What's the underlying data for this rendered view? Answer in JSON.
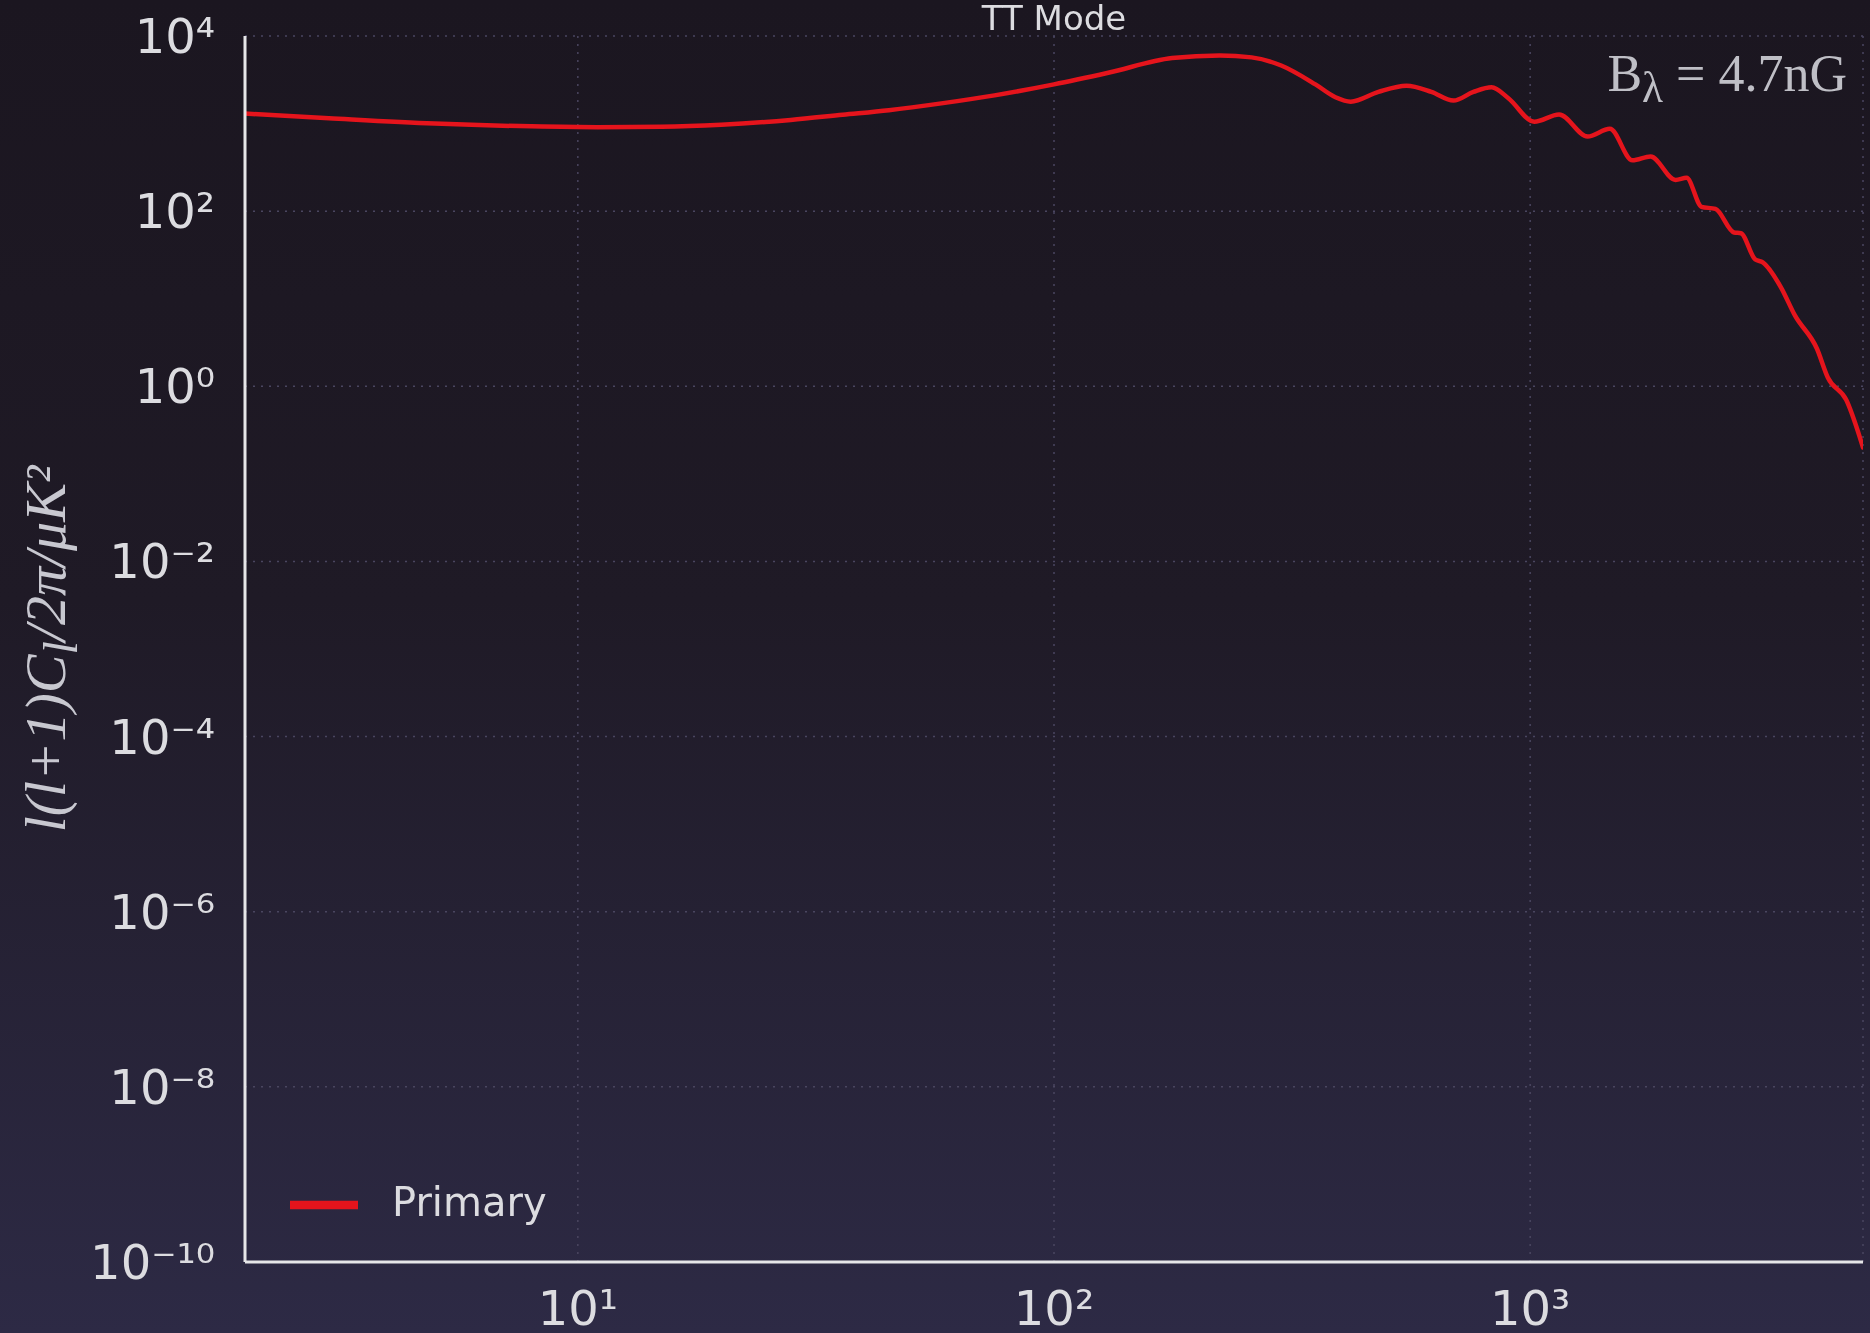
{
  "chart_data": {
    "type": "line",
    "title": "TT Mode",
    "ylabel": "l(l+1)C$_{l}$/2π/μK²",
    "annotations": [
      "B$_{λ}$ = 4.7nG"
    ],
    "x": [
      2,
      3,
      5,
      8,
      11,
      15,
      20,
      28,
      36,
      45,
      58,
      75,
      100,
      130,
      177,
      223,
      260,
      300,
      354,
      390,
      420,
      480,
      550,
      620,
      690,
      760,
      830,
      900,
      1020,
      1150,
      1320,
      1470,
      1640,
      1790,
      2020,
      2130,
      2290,
      2450,
      2680,
      2770,
      2970,
      3080,
      3360,
      3600,
      4000,
      4220,
      4610,
      5000
    ],
    "series": [
      {
        "name": "Primary",
        "color": "#e5141c",
        "values": [
          1300,
          1150,
          1000,
          930,
          910,
          920,
          970,
          1100,
          1260,
          1420,
          1700,
          2100,
          2800,
          3800,
          5600,
          6000,
          5700,
          4600,
          2800,
          2000,
          1780,
          2300,
          2700,
          2300,
          1830,
          2300,
          2600,
          1950,
          1050,
          1270,
          710,
          870,
          380,
          420,
          227,
          240,
          112,
          106,
          57,
          56,
          28,
          26,
          13.6,
          6.4,
          2.7,
          1.25,
          0.7,
          0.2
        ]
      }
    ],
    "xlim": [
      2,
      5000
    ],
    "ylim": [
      1e-10,
      10000
    ],
    "xticks": [
      {
        "value": 10,
        "label": "10¹"
      },
      {
        "value": 100,
        "label": "10²"
      },
      {
        "value": 1000,
        "label": "10³"
      }
    ],
    "yticks": [
      {
        "value": 10000,
        "label": "10⁴"
      },
      {
        "value": 100,
        "label": "10²"
      },
      {
        "value": 1,
        "label": "10⁰"
      },
      {
        "value": 0.01,
        "label": "10⁻²"
      },
      {
        "value": 0.0001,
        "label": "10⁻⁴"
      },
      {
        "value": 1e-06,
        "label": "10⁻⁶"
      },
      {
        "value": 1e-08,
        "label": "10⁻⁸"
      },
      {
        "value": 1e-10,
        "label": "10⁻¹⁰"
      }
    ],
    "log": "xy",
    "grid": true,
    "legend": "bottom left",
    "line_style": "solid"
  }
}
